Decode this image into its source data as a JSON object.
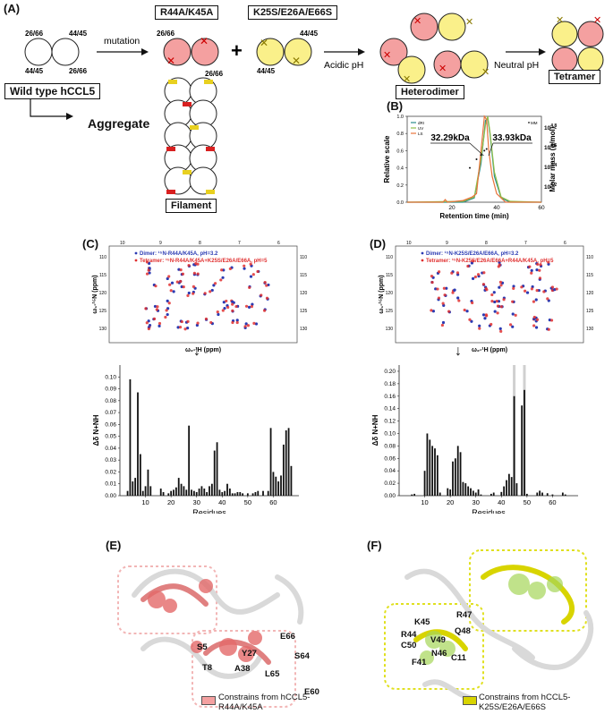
{
  "panelA": {
    "label": "(A)",
    "wildtype_label": "Wild type hCCL5",
    "sites": [
      "26/66",
      "44/45",
      "44/45",
      "26/66"
    ],
    "mutation_label": "mutation",
    "mutant1_label": "R44A/K45A",
    "mutant1_sites": [
      "26/66",
      "26/66"
    ],
    "plus": "+",
    "mutant2_label": "K25S/E26A/E66S",
    "mutant2_sites": [
      "44/45",
      "44/45"
    ],
    "acidic_label": "Acidic pH",
    "heterodimer_label": "Heterodimer",
    "neutral_label": "Neutral pH",
    "tetramer_label": "Tetramer",
    "aggregate_label": "Aggregate",
    "filament_label": "Filament"
  },
  "panelB": {
    "label": "(B)",
    "ylabel_left": "Relative scale",
    "ylabel_right": "Molar mass (g/mol)",
    "xlabel": "Retention time (min)",
    "legend": [
      "dRI",
      "UV",
      "LS"
    ],
    "mass_label": "MM",
    "annot1": "32.29kDa",
    "annot2": "33.93kDa"
  },
  "panelC": {
    "label": "(C)",
    "legend1": "Dimer: ¹⁵N-R44A/K45A, pH=3.2",
    "legend2": "Tetramer: ¹⁵N-R44A/K45A+K25S/E26A/E66A, pH=5",
    "hsqc_ylabel": "ω₁-¹⁵N (ppm)",
    "hsqc_xlabel": "ω₂-¹H (ppm)",
    "bar_ylabel": "Δδ N+NH",
    "bar_xlabel": "Residues"
  },
  "panelD": {
    "label": "(D)",
    "legend1": "Dimer: ¹⁵N-K25S/E26A/E66A, pH=3.2",
    "legend2": "Tetramer: ¹⁵N-K25S/E26A/E66A+R44A/K45A, pH=5",
    "hsqc_ylabel": "ω₁-¹⁵N (ppm)",
    "hsqc_xlabel": "ω₂-¹H (ppm)",
    "bar_ylabel": "Δδ N+NH",
    "bar_xlabel": "Residues"
  },
  "panelE": {
    "label": "(E)",
    "residues": [
      "S5",
      "T8",
      "Y27",
      "A38",
      "L65",
      "E66",
      "S64",
      "E60"
    ],
    "legend": "Constrains from hCCL5-R44A/K45A"
  },
  "panelF": {
    "label": "(F)",
    "residues": [
      "K45",
      "R47",
      "R44",
      "V49",
      "Q48",
      "C50",
      "N46",
      "F41",
      "C11"
    ],
    "legend": "Constrains from hCCL5-K25S/E26A/E66S"
  },
  "chart_data": [
    {
      "type": "line",
      "id": "B",
      "xlabel": "Retention time (min)",
      "ylabel": "Relative scale",
      "xlim": [
        0,
        60
      ],
      "xticks": [
        20,
        40,
        60
      ],
      "ylim": [
        0,
        1
      ],
      "yticks": [
        0.0,
        0.2,
        0.4,
        0.6,
        0.8,
        1.0
      ],
      "y2label": "Molar mass (g/mol)",
      "y2ticks": [
        "10^4.2",
        "10^4.4",
        "10^4.6",
        "10^4.8"
      ],
      "series": [
        {
          "name": "dRI",
          "color": "#2a8c8c",
          "x": [
            0,
            25,
            30,
            33,
            35,
            36,
            37,
            39,
            42,
            46,
            60
          ],
          "y": [
            0.0,
            0.0,
            0.05,
            0.45,
            0.95,
            0.98,
            0.8,
            0.3,
            0.05,
            0.0,
            0.0
          ]
        },
        {
          "name": "UV",
          "color": "#8fbf4a",
          "x": [
            0,
            25,
            30,
            33,
            35,
            36,
            37,
            39,
            42,
            46,
            60
          ],
          "y": [
            0.0,
            0.01,
            0.06,
            0.5,
            0.9,
            1.0,
            0.82,
            0.35,
            0.06,
            0.01,
            0.0
          ]
        },
        {
          "name": "LS",
          "color": "#e8743b",
          "x": [
            0,
            16,
            17,
            18,
            25,
            29,
            31,
            33,
            34.5,
            35.5,
            36.5,
            38,
            40,
            44,
            60
          ],
          "y": [
            0.0,
            0.0,
            0.03,
            0.0,
            0.02,
            0.06,
            0.1,
            0.6,
            1.0,
            0.96,
            0.6,
            0.3,
            0.1,
            0.0,
            0.0
          ]
        }
      ],
      "annotations": [
        "32.29kDa",
        "33.93kDa"
      ]
    },
    {
      "type": "bar",
      "id": "C",
      "xlabel": "Residues",
      "ylabel": "Δδ N+NH",
      "xlim": [
        0,
        70
      ],
      "ylim": [
        0,
        0.11
      ],
      "xticks": [
        10,
        20,
        30,
        40,
        50,
        60
      ],
      "yticks": [
        0.0,
        0.01,
        0.02,
        0.03,
        0.04,
        0.05,
        0.06,
        0.07,
        0.08,
        0.09,
        0.1
      ],
      "x": [
        3,
        4,
        5,
        6,
        7,
        8,
        9,
        10,
        11,
        12,
        16,
        17,
        19,
        20,
        21,
        22,
        23,
        24,
        25,
        26,
        27,
        28,
        29,
        30,
        31,
        32,
        33,
        34,
        35,
        36,
        37,
        38,
        39,
        40,
        41,
        42,
        43,
        44,
        45,
        46,
        47,
        48,
        50,
        52,
        53,
        54,
        56,
        58,
        59,
        60,
        61,
        62,
        63,
        64,
        65,
        66,
        67
      ],
      "values": [
        0.004,
        0.098,
        0.012,
        0.015,
        0.087,
        0.035,
        0.004,
        0.008,
        0.022,
        0.008,
        0.006,
        0.003,
        0.002,
        0.004,
        0.005,
        0.007,
        0.015,
        0.01,
        0.008,
        0.005,
        0.059,
        0.005,
        0.004,
        0.003,
        0.006,
        0.008,
        0.006,
        0.003,
        0.008,
        0.01,
        0.038,
        0.045,
        0.005,
        0.003,
        0.004,
        0.01,
        0.006,
        0.002,
        0.002,
        0.003,
        0.003,
        0.002,
        0.002,
        0.002,
        0.003,
        0.004,
        0.004,
        0.004,
        0.057,
        0.02,
        0.016,
        0.012,
        0.017,
        0.043,
        0.055,
        0.057,
        0.025
      ]
    },
    {
      "type": "bar",
      "id": "D",
      "xlabel": "Residues",
      "ylabel": "Δδ N+NH",
      "xlim": [
        0,
        70
      ],
      "ylim": [
        0,
        0.21
      ],
      "xticks": [
        10,
        20,
        30,
        40,
        50,
        60
      ],
      "yticks": [
        0.0,
        0.02,
        0.04,
        0.06,
        0.08,
        0.1,
        0.12,
        0.14,
        0.16,
        0.18,
        0.2
      ],
      "highlight_residues": [
        45,
        49
      ],
      "x": [
        5,
        6,
        10,
        11,
        12,
        13,
        14,
        15,
        16,
        19,
        20,
        21,
        22,
        23,
        24,
        25,
        26,
        27,
        28,
        29,
        30,
        31,
        32,
        36,
        37,
        40,
        41,
        42,
        43,
        44,
        45,
        46,
        48,
        49,
        50,
        54,
        55,
        56,
        58,
        60,
        64,
        65
      ],
      "values": [
        0.002,
        0.003,
        0.04,
        0.1,
        0.09,
        0.08,
        0.076,
        0.065,
        0.005,
        0.012,
        0.01,
        0.055,
        0.06,
        0.08,
        0.07,
        0.022,
        0.02,
        0.015,
        0.012,
        0.008,
        0.005,
        0.01,
        0.002,
        0.003,
        0.005,
        0.006,
        0.015,
        0.025,
        0.035,
        0.03,
        0.16,
        0.02,
        0.145,
        0.17,
        0.003,
        0.005,
        0.008,
        0.005,
        0.004,
        0.002,
        0.005,
        0.002
      ]
    }
  ]
}
